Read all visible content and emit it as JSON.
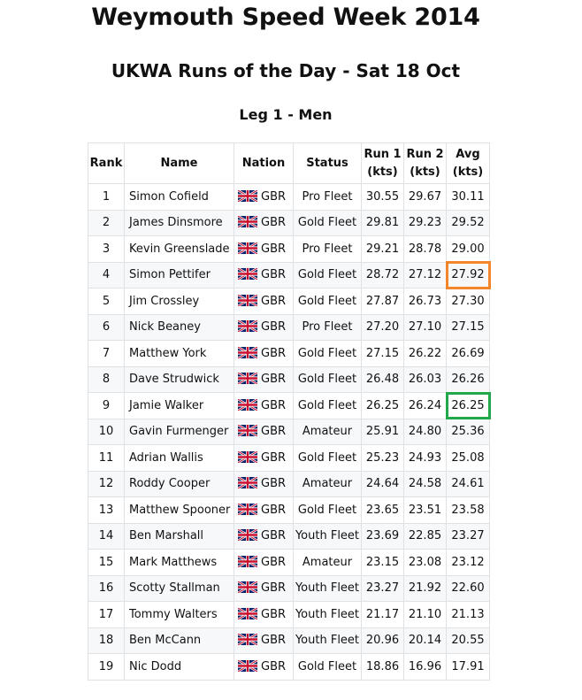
{
  "page": {
    "title": "Weymouth Speed Week 2014",
    "subtitle": "UKWA Runs of the Day - Sat 18 Oct",
    "section": "Leg 1 - Men"
  },
  "table": {
    "headers": {
      "rank": "Rank",
      "name": "Name",
      "nation": "Nation",
      "status": "Status",
      "run1_line1": "Run 1",
      "run1_line2": "(kts)",
      "run2_line1": "Run 2",
      "run2_line2": "(kts)",
      "avg_line1": "Avg",
      "avg_line2": "(kts)"
    },
    "rows": [
      {
        "rank": "1",
        "name": "Simon Cofield",
        "nation": "GBR",
        "status": "Pro Fleet",
        "run1": "30.55",
        "run2": "29.67",
        "avg": "30.11"
      },
      {
        "rank": "2",
        "name": "James Dinsmore",
        "nation": "GBR",
        "status": "Gold Fleet",
        "run1": "29.81",
        "run2": "29.23",
        "avg": "29.52"
      },
      {
        "rank": "3",
        "name": "Kevin Greenslade",
        "nation": "GBR",
        "status": "Pro Fleet",
        "run1": "29.21",
        "run2": "28.78",
        "avg": "29.00"
      },
      {
        "rank": "4",
        "name": "Simon Pettifer",
        "nation": "GBR",
        "status": "Gold Fleet",
        "run1": "28.72",
        "run2": "27.12",
        "avg": "27.92",
        "highlight": "orange"
      },
      {
        "rank": "5",
        "name": "Jim Crossley",
        "nation": "GBR",
        "status": "Gold Fleet",
        "run1": "27.87",
        "run2": "26.73",
        "avg": "27.30"
      },
      {
        "rank": "6",
        "name": "Nick Beaney",
        "nation": "GBR",
        "status": "Pro Fleet",
        "run1": "27.20",
        "run2": "27.10",
        "avg": "27.15"
      },
      {
        "rank": "7",
        "name": "Matthew York",
        "nation": "GBR",
        "status": "Gold Fleet",
        "run1": "27.15",
        "run2": "26.22",
        "avg": "26.69"
      },
      {
        "rank": "8",
        "name": "Dave Strudwick",
        "nation": "GBR",
        "status": "Gold Fleet",
        "run1": "26.48",
        "run2": "26.03",
        "avg": "26.26"
      },
      {
        "rank": "9",
        "name": "Jamie Walker",
        "nation": "GBR",
        "status": "Gold Fleet",
        "run1": "26.25",
        "run2": "26.24",
        "avg": "26.25",
        "highlight": "green"
      },
      {
        "rank": "10",
        "name": "Gavin Furmenger",
        "nation": "GBR",
        "status": "Amateur",
        "run1": "25.91",
        "run2": "24.80",
        "avg": "25.36"
      },
      {
        "rank": "11",
        "name": "Adrian Wallis",
        "nation": "GBR",
        "status": "Gold Fleet",
        "run1": "25.23",
        "run2": "24.93",
        "avg": "25.08"
      },
      {
        "rank": "12",
        "name": "Roddy Cooper",
        "nation": "GBR",
        "status": "Amateur",
        "run1": "24.64",
        "run2": "24.58",
        "avg": "24.61"
      },
      {
        "rank": "13",
        "name": "Matthew Spooner",
        "nation": "GBR",
        "status": "Gold Fleet",
        "run1": "23.65",
        "run2": "23.51",
        "avg": "23.58"
      },
      {
        "rank": "14",
        "name": "Ben Marshall",
        "nation": "GBR",
        "status": "Youth Fleet",
        "run1": "23.69",
        "run2": "22.85",
        "avg": "23.27"
      },
      {
        "rank": "15",
        "name": "Mark Matthews",
        "nation": "GBR",
        "status": "Amateur",
        "run1": "23.15",
        "run2": "23.08",
        "avg": "23.12"
      },
      {
        "rank": "16",
        "name": "Scotty Stallman",
        "nation": "GBR",
        "status": "Youth Fleet",
        "run1": "23.27",
        "run2": "21.92",
        "avg": "22.60"
      },
      {
        "rank": "17",
        "name": "Tommy Walters",
        "nation": "GBR",
        "status": "Youth Fleet",
        "run1": "21.17",
        "run2": "21.10",
        "avg": "21.13"
      },
      {
        "rank": "18",
        "name": "Ben McCann",
        "nation": "GBR",
        "status": "Youth Fleet",
        "run1": "20.96",
        "run2": "20.14",
        "avg": "20.55"
      },
      {
        "rank": "19",
        "name": "Nic Dodd",
        "nation": "GBR",
        "status": "Gold Fleet",
        "run1": "18.86",
        "run2": "16.96",
        "avg": "17.91"
      }
    ]
  },
  "icons": {
    "flag": "union-jack-flag-icon"
  },
  "colors": {
    "highlight_orange": "#f5852b",
    "highlight_green": "#21a84a"
  }
}
